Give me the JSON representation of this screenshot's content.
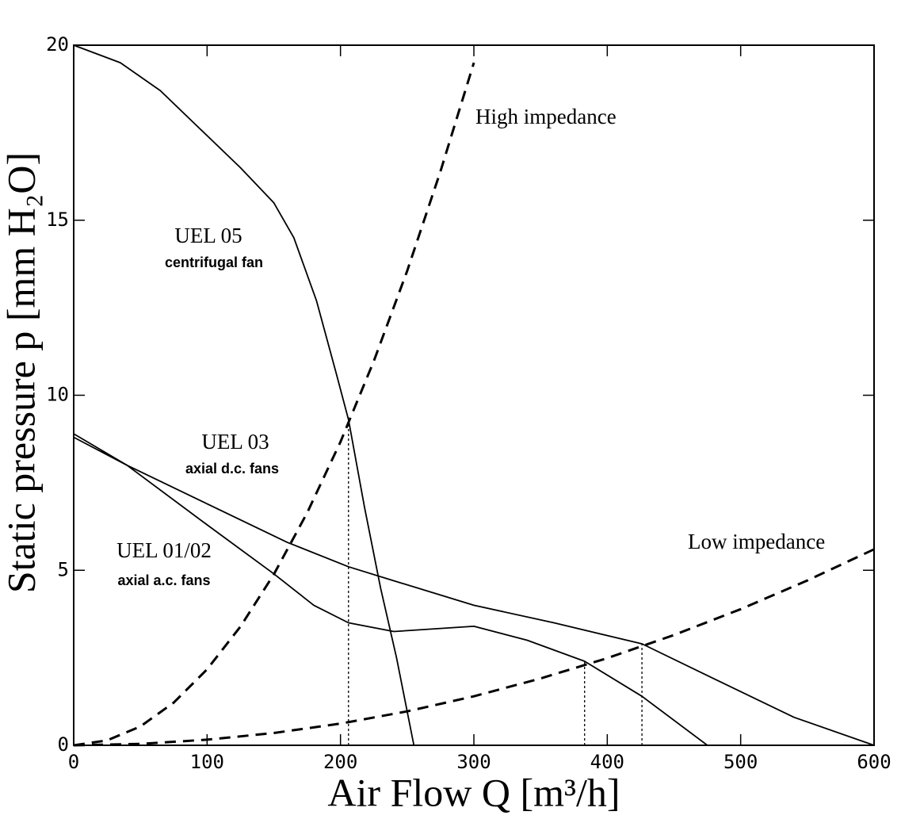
{
  "chart_data": {
    "type": "line",
    "x_label": "Air Flow Q [m³/h]",
    "y_label": "Static pressure p [mm H₂O]",
    "xlim": [
      0,
      600
    ],
    "ylim": [
      0,
      20
    ],
    "xticks": [
      0,
      100,
      200,
      300,
      400,
      500,
      600
    ],
    "yticks": [
      0,
      5,
      10,
      15,
      20
    ],
    "series": [
      {
        "name": "UEL 05 centrifugal fan",
        "color": "#000000",
        "dash": "solid",
        "x": [
          0,
          35,
          65,
          95,
          125,
          150,
          165,
          182,
          197,
          206,
          218,
          230,
          242,
          255
        ],
        "values": [
          20,
          19.5,
          18.7,
          17.6,
          16.5,
          15.5,
          14.5,
          12.7,
          10.6,
          9.3,
          6.8,
          4.5,
          2.5,
          0
        ]
      },
      {
        "name": "UEL 03 axial d.c. fans",
        "color": "#000000",
        "dash": "solid",
        "x": [
          0,
          40,
          100,
          160,
          206,
          240,
          300,
          360,
          426,
          480,
          540,
          600
        ],
        "values": [
          8.9,
          8.0,
          6.9,
          5.8,
          5.1,
          4.7,
          4.0,
          3.5,
          2.9,
          1.9,
          0.8,
          0
        ]
      },
      {
        "name": "UEL 01/02 axial a.c. fans",
        "color": "#000000",
        "dash": "solid",
        "x": [
          0,
          40,
          100,
          150,
          180,
          206,
          240,
          300,
          340,
          383,
          426,
          475
        ],
        "values": [
          8.8,
          8.0,
          6.3,
          4.9,
          4.0,
          3.5,
          3.25,
          3.4,
          3.0,
          2.4,
          1.4,
          0
        ]
      },
      {
        "name": "High impedance",
        "color": "#000000",
        "dash": "dashed",
        "x": [
          0,
          25,
          50,
          75,
          100,
          125,
          150,
          175,
          200,
          225,
          250,
          275,
          300
        ],
        "values": [
          0,
          0.14,
          0.54,
          1.22,
          2.17,
          3.39,
          4.88,
          6.64,
          8.67,
          10.98,
          13.55,
          16.4,
          19.5
        ]
      },
      {
        "name": "Low impedance",
        "color": "#000000",
        "dash": "dashed",
        "x": [
          0,
          50,
          100,
          150,
          200,
          250,
          300,
          350,
          400,
          450,
          500,
          550,
          600
        ],
        "values": [
          0,
          0.04,
          0.16,
          0.35,
          0.62,
          0.97,
          1.4,
          1.91,
          2.49,
          3.15,
          3.89,
          4.71,
          5.6
        ]
      }
    ],
    "drop_lines": [
      {
        "x": 206,
        "y": 9.2
      },
      {
        "x": 383,
        "y": 2.4
      },
      {
        "x": 426,
        "y": 2.9
      }
    ],
    "annotations": [
      "High impedance",
      "UEL 05",
      "centrifugal fan",
      "UEL 03",
      "axial d.c. fans",
      "UEL 01/02",
      "axial a.c. fans",
      "Low impedance"
    ]
  }
}
